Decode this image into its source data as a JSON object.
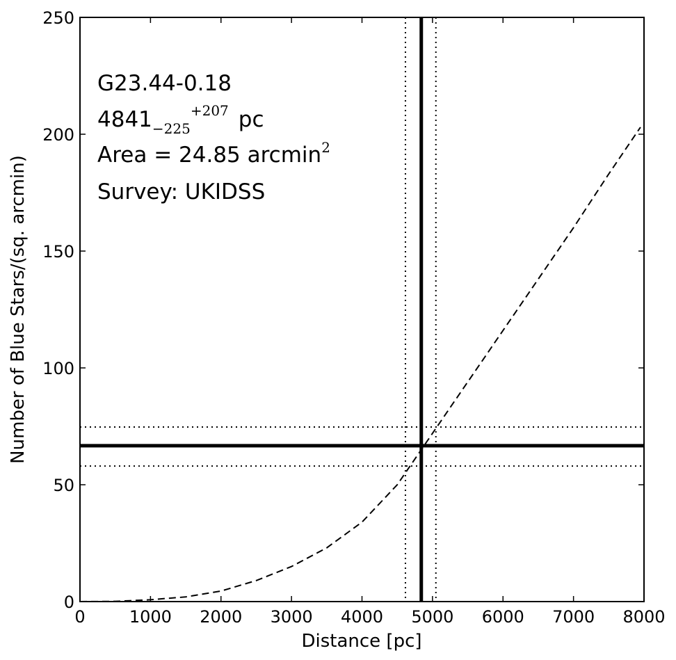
{
  "chart_data": {
    "type": "line",
    "xlabel": "Distance [pc]",
    "ylabel": "Number of Blue Stars/(sq. arcmin)",
    "x": [
      0,
      500,
      1000,
      1500,
      2000,
      2500,
      3000,
      3500,
      4000,
      4500,
      5000,
      5500,
      6000,
      6500,
      7000,
      7500,
      7950
    ],
    "values": [
      0,
      0.1,
      0.8,
      2,
      4.5,
      9,
      15,
      23,
      34,
      50,
      72,
      94,
      116,
      138,
      160,
      183,
      203
    ],
    "color": "#000000",
    "xlim": [
      0,
      8000
    ],
    "xticks": [
      0,
      1000,
      2000,
      3000,
      4000,
      5000,
      6000,
      7000,
      8000
    ],
    "ylim": [
      0,
      250
    ],
    "yticks": [
      0,
      50,
      100,
      150,
      200,
      250
    ],
    "vlines": {
      "center": 4841,
      "low": 4616,
      "high": 5048
    },
    "hlines": {
      "center": 66.7,
      "low": 58,
      "high": 74.7
    },
    "annotations": {
      "name": "G23.44-0.18",
      "distance": "4841",
      "err_minus": "−225",
      "err_plus": "+207",
      "unit": "pc",
      "area": "Area = 24.85 arcmin",
      "area_sup": "2",
      "survey": "Survey: UKIDSS"
    }
  }
}
